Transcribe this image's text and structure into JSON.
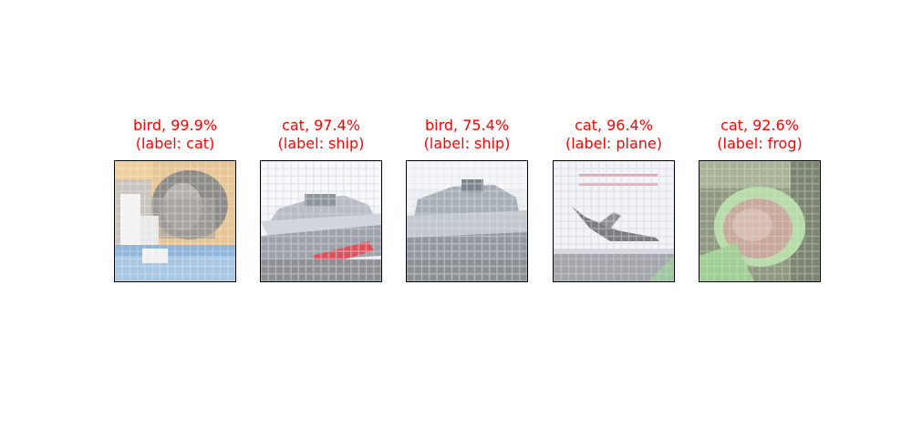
{
  "colors": {
    "caption": "#ff0000",
    "border": "#000000",
    "background": "#ffffff"
  },
  "panels": [
    {
      "prediction": "bird, 99.9%",
      "label": "(label: cat)",
      "scene": "cat-photo"
    },
    {
      "prediction": "cat, 97.4%",
      "label": "(label: ship)",
      "scene": "ship-photo"
    },
    {
      "prediction": "bird, 75.4%",
      "label": "(label: ship)",
      "scene": "ship-photo"
    },
    {
      "prediction": "cat, 96.4%",
      "label": "(label: plane)",
      "scene": "plane-photo"
    },
    {
      "prediction": "cat, 92.6%",
      "label": "(label: frog)",
      "scene": "frog-photo"
    }
  ]
}
